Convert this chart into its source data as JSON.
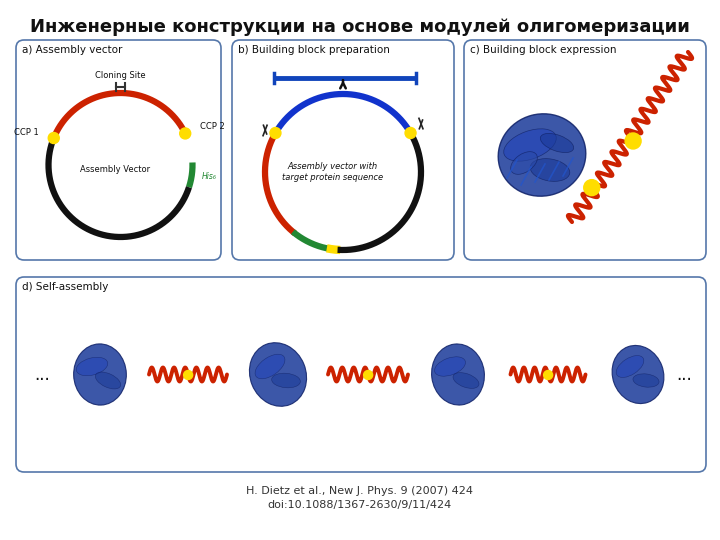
{
  "title": "Инженерные конструкции на основе модулей олигомеризации",
  "title_fontsize": 13,
  "citation_line1": "H. Dietz et al., New J. Phys. 9 (2007) 424",
  "citation_line2": "doi:10.1088/1367-2630/9/11/424",
  "citation_fontsize": 8,
  "bg_color": "#ffffff",
  "panel_border": "#5577aa",
  "panel_a_title": "a) Assembly vector",
  "panel_b_title": "b) Building block preparation",
  "panel_c_title": "c) Building block expression",
  "panel_d_title": "d) Self-assembly",
  "panel_title_fontsize": 7.5,
  "dots_text": "...",
  "panel_a_label_cloning": "Cloning Site",
  "panel_a_label_ccp1": "CCP 1",
  "panel_a_label_ccp2": "CCP 2",
  "panel_a_label_vector": "Assembly Vector",
  "panel_a_label_his": "His₆",
  "panel_b_label_text": "Assembly vector with\ntarget protein sequence",
  "circle_black": "#111111",
  "circle_red": "#cc2200",
  "circle_blue": "#1133cc",
  "circle_green": "#228833",
  "circle_yellow": "#ffdd00",
  "bar_blue": "#1144bb",
  "arrow_color": "#111111",
  "helix_red": "#cc2200",
  "helix_dark": "#8B0000",
  "circle_yellow2": "#ffcc00",
  "protein_blue": "#1133aa",
  "protein_blue2": "#2244bb"
}
